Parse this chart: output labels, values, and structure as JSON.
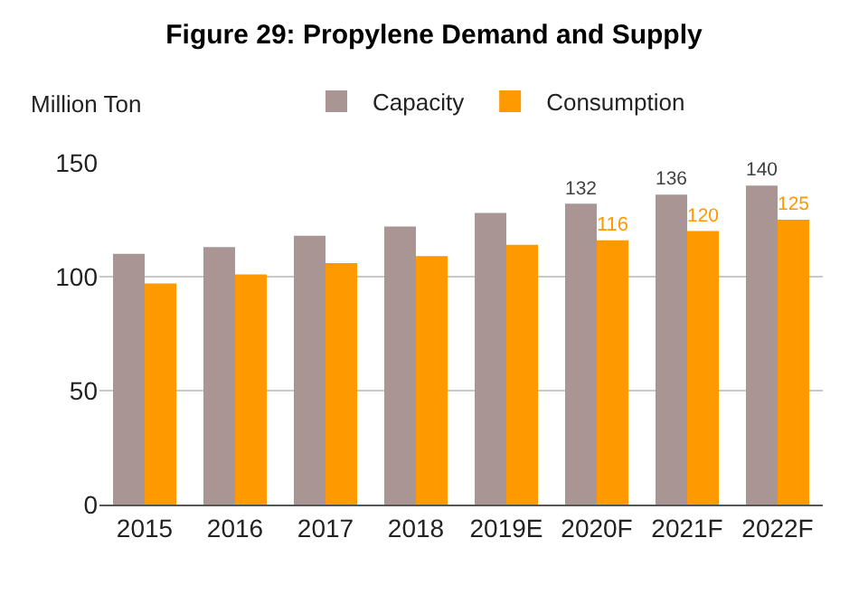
{
  "chart_data": {
    "type": "bar",
    "title": "Figure 29: Propylene Demand and Supply",
    "ylabel": "Million Ton",
    "categories": [
      "2015",
      "2016",
      "2017",
      "2018",
      "2019E",
      "2020F",
      "2021F",
      "2022F"
    ],
    "series": [
      {
        "name": "Capacity",
        "color": "#a89594",
        "values": [
          110,
          113,
          118,
          122,
          128,
          132,
          136,
          140
        ],
        "value_labels": [
          null,
          null,
          null,
          null,
          null,
          "132",
          "136",
          "140"
        ]
      },
      {
        "name": "Consumption",
        "color": "#ff9900",
        "values": [
          97,
          101,
          106,
          109,
          114,
          116,
          120,
          125
        ],
        "value_labels": [
          null,
          null,
          null,
          null,
          null,
          "116",
          "120",
          "125"
        ]
      }
    ],
    "ylim": [
      0,
      150
    ],
    "yticks": [
      0,
      50,
      100,
      150
    ],
    "grid": "y",
    "legend": "top"
  }
}
